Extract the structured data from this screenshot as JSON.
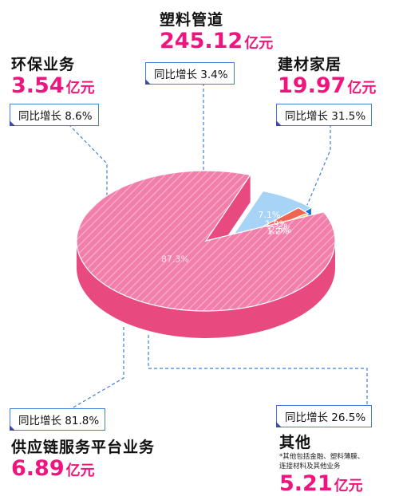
{
  "chart_data": {
    "type": "pie",
    "style": "3d-exploded",
    "slices": [
      {
        "key": "plastic_pipes",
        "label": "塑料管道",
        "value": 245.12,
        "unit": "亿元",
        "percent_label": "87.3%",
        "growth_label": "同比增长",
        "growth_value": "3.4%",
        "color": "#ee7aa6"
      },
      {
        "key": "building_materials",
        "label": "建材家居",
        "value": 19.97,
        "unit": "亿元",
        "percent_label": "7.1%",
        "growth_label": "同比增长",
        "growth_value": "31.5%",
        "color": "#a7d4f6"
      },
      {
        "key": "other",
        "label": "其他",
        "value": 5.21,
        "unit": "亿元",
        "percent_label": "1.9%",
        "growth_label": "同比增长",
        "growth_value": "26.5%",
        "color": "#ee6550",
        "note_lines": [
          "*其他包括金融、塑料薄膜、",
          "连接材料及其他业务"
        ]
      },
      {
        "key": "supply_chain",
        "label": "供应链服务平台业务",
        "value": 6.89,
        "unit": "亿元",
        "percent_label": "2.5%",
        "growth_label": "同比增长",
        "growth_value": "81.8%",
        "color": "#ffc061"
      },
      {
        "key": "environmental",
        "label": "环保业务",
        "value": 3.54,
        "unit": "亿元",
        "percent_label": "1.2%",
        "growth_label": "同比增长",
        "growth_value": "8.6%",
        "color": "#d4a2ee"
      }
    ],
    "colors": {
      "callout_border": "#3f7fd8",
      "callout_line": "#3f7fd8",
      "amount_text": "#f0157e",
      "plastic_pipes_side": "#e8497e",
      "building_materials_side": "#1672d6",
      "other_side": "#cf4b3a",
      "supply_chain_side": "#f49f2c",
      "environmental_side": "#8a5ab5"
    }
  }
}
